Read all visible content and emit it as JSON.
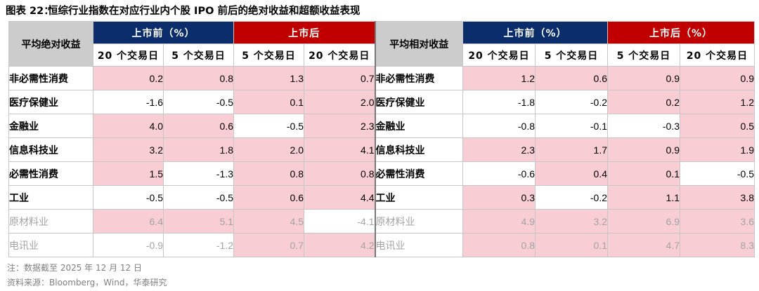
{
  "title": {
    "number": "图表 22：",
    "text": "恒综行业指数在对应行业内个股 IPO 前后的绝对收益和超额收益表现"
  },
  "left": {
    "corner": "平均绝对收益",
    "group_before": "上市前（%）",
    "group_after": "上市后",
    "sub": [
      "20 个交易日",
      "5 个交易日",
      "5 个交易日",
      "20 个交易日"
    ]
  },
  "right": {
    "corner": "平均相对收益",
    "group_before": "上市前（%）",
    "group_after": "上市后（%）",
    "sub": [
      "20 个交易日",
      "5 个交易日",
      "5 个交易日",
      "20 个交易日"
    ]
  },
  "rows": [
    {
      "industry": "非必需性消费",
      "abs": [
        "0.2",
        "0.8",
        "1.3",
        "0.7"
      ],
      "rel": [
        "1.2",
        "0.6",
        "0.9",
        "0.9"
      ],
      "abs_hl": [
        true,
        true,
        true,
        true
      ],
      "rel_hl": [
        true,
        true,
        true,
        true
      ],
      "faded": false
    },
    {
      "industry": "医疗保健业",
      "abs": [
        "-1.6",
        "-0.5",
        "0.1",
        "2.0"
      ],
      "rel": [
        "-1.8",
        "-0.2",
        "0.2",
        "1.2"
      ],
      "abs_hl": [
        false,
        false,
        true,
        true
      ],
      "rel_hl": [
        false,
        false,
        true,
        true
      ],
      "faded": false
    },
    {
      "industry": "金融业",
      "abs": [
        "4.0",
        "0.6",
        "-0.5",
        "2.3"
      ],
      "rel": [
        "-0.8",
        "-0.1",
        "-0.3",
        "0.5"
      ],
      "abs_hl": [
        true,
        true,
        false,
        true
      ],
      "rel_hl": [
        false,
        false,
        false,
        true
      ],
      "faded": false
    },
    {
      "industry": "信息科技业",
      "abs": [
        "3.2",
        "1.8",
        "2.0",
        "4.1"
      ],
      "rel": [
        "2.3",
        "1.7",
        "0.9",
        "1.9"
      ],
      "abs_hl": [
        true,
        true,
        true,
        true
      ],
      "rel_hl": [
        true,
        true,
        true,
        true
      ],
      "faded": false
    },
    {
      "industry": "必需性消费",
      "abs": [
        "1.5",
        "-1.3",
        "0.8",
        "0.8"
      ],
      "rel": [
        "-0.6",
        "0.4",
        "0.1",
        "-0.5"
      ],
      "abs_hl": [
        true,
        false,
        true,
        true
      ],
      "rel_hl": [
        false,
        true,
        true,
        false
      ],
      "faded": false
    },
    {
      "industry": "工业",
      "abs": [
        "-0.5",
        "-0.5",
        "0.6",
        "4.4"
      ],
      "rel": [
        "0.3",
        "-0.2",
        "1.1",
        "3.8"
      ],
      "abs_hl": [
        false,
        false,
        true,
        true
      ],
      "rel_hl": [
        true,
        false,
        true,
        true
      ],
      "faded": false
    },
    {
      "industry": "原材料业",
      "abs": [
        "6.4",
        "5.1",
        "4.5",
        "-4.1"
      ],
      "rel": [
        "4.9",
        "3.2",
        "6.9",
        "3.6"
      ],
      "abs_hl": [
        true,
        true,
        true,
        false
      ],
      "rel_hl": [
        true,
        true,
        true,
        true
      ],
      "faded": true
    },
    {
      "industry": "电讯业",
      "abs": [
        "-0.9",
        "-1.2",
        "0.7",
        "4.2"
      ],
      "rel": [
        "0.8",
        "0.1",
        "4.7",
        "8.3"
      ],
      "abs_hl": [
        false,
        false,
        true,
        true
      ],
      "rel_hl": [
        true,
        true,
        true,
        true
      ],
      "faded": true
    }
  ],
  "note": "注：数据截至 2025 年 12 月 12 日",
  "source": "资料来源：Bloomberg，Wind，华泰研究",
  "colors": {
    "header_blue": "#0b2d6b",
    "header_red": "#c00000",
    "header_gray": "#cccccc",
    "highlight_pink": "#f9cdd4",
    "faded_text": "#a3a3a3"
  }
}
